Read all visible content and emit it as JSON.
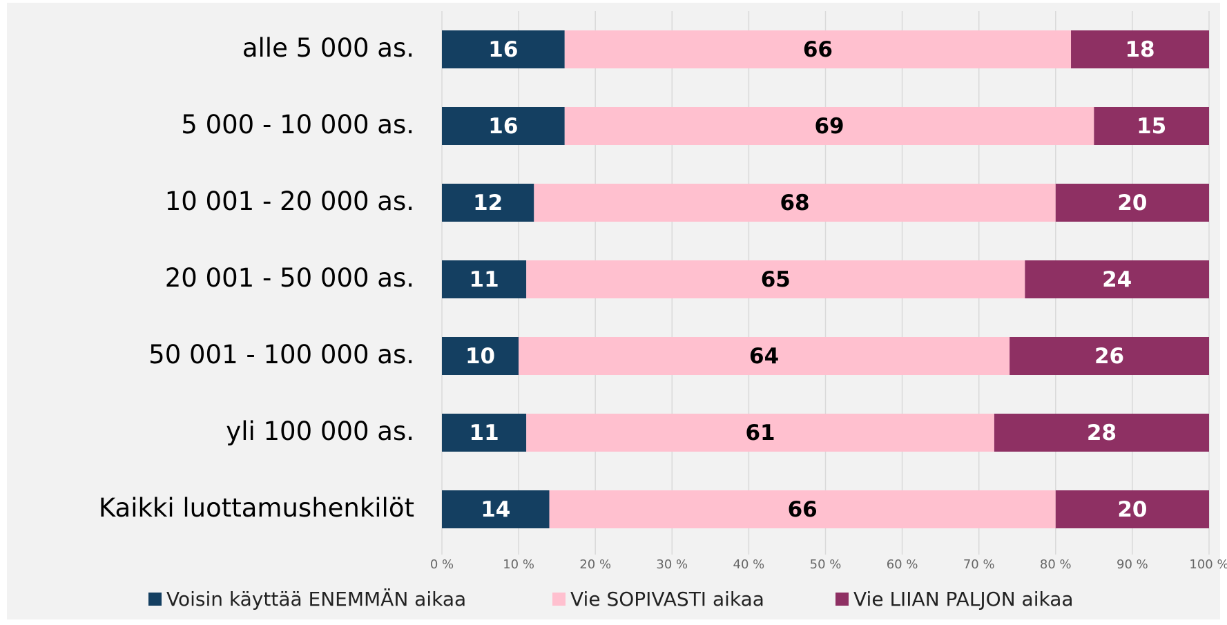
{
  "chart_data": {
    "type": "stacked_bar",
    "orientation": "horizontal",
    "categories": [
      "alle 5 000 as.",
      "5 000 - 10 000 as.",
      "10 001 - 20 000 as.",
      "20 001 - 50 000 as.",
      "50 001 - 100 000 as.",
      "yli 100 000 as.",
      "Kaikki luottamushenkilöt"
    ],
    "series": [
      {
        "name": "Voisin käyttää ENEMMÄN aikaa",
        "color": "#143f61",
        "values": [
          16,
          16,
          12,
          11,
          10,
          11,
          14
        ]
      },
      {
        "name": "Vie SOPIVASTI aikaa",
        "color": "#ffc0cf",
        "values": [
          66,
          69,
          68,
          65,
          64,
          61,
          66
        ]
      },
      {
        "name": "Vie LIIAN PALJON aikaa",
        "color": "#8e3063",
        "values": [
          18,
          15,
          20,
          24,
          26,
          28,
          20
        ]
      }
    ],
    "xlim": [
      0,
      100
    ],
    "xticks": [
      {
        "value": 0,
        "label": "0 %"
      },
      {
        "value": 10,
        "label": "10 %"
      },
      {
        "value": 20,
        "label": "20 %"
      },
      {
        "value": 30,
        "label": "30 %"
      },
      {
        "value": 40,
        "label": "40 %"
      },
      {
        "value": 50,
        "label": "50 %"
      },
      {
        "value": 60,
        "label": "60 %"
      },
      {
        "value": 70,
        "label": "70 %"
      },
      {
        "value": 80,
        "label": "80 %"
      },
      {
        "value": 90,
        "label": "90 %"
      },
      {
        "value": 100,
        "label": "100 %"
      }
    ],
    "grid": true,
    "legend": "bottom"
  }
}
